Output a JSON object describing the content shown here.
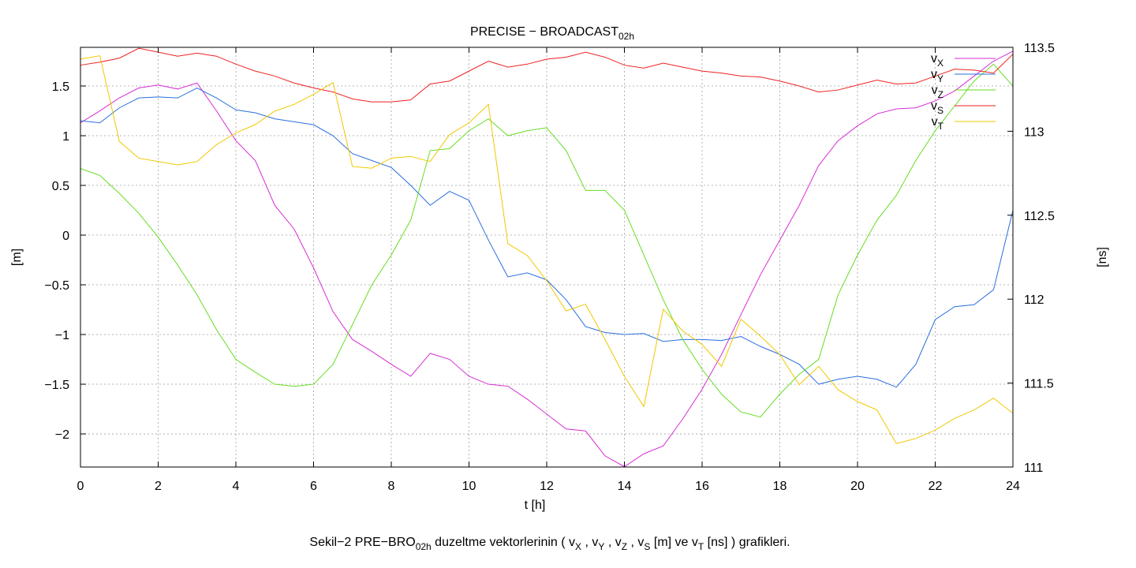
{
  "chart_data": {
    "type": "line",
    "title": [
      "PRECISE − BROADCAST",
      "02h"
    ],
    "x_label": "t [h]",
    "y_label": "[m]",
    "y2_label": "[ns]",
    "caption": [
      "Sekil−2 PRE−BRO",
      "02h",
      " duzeltme vektorlerinin ( v",
      "X",
      " , v",
      "Y",
      " , v",
      "Z",
      " , v",
      "S",
      " [m] ve v",
      "T",
      " [ns] ) grafikleri."
    ],
    "grid": true,
    "legend": "top-right",
    "xlim": [
      0,
      24
    ],
    "xticks": [
      0,
      2,
      4,
      6,
      8,
      10,
      12,
      14,
      16,
      18,
      20,
      22,
      24
    ],
    "ylim": [
      -2.333,
      1.889
    ],
    "yticks": [
      {
        "value": -2,
        "label": "−2"
      },
      {
        "value": -1.5,
        "label": "−1.5"
      },
      {
        "value": -1,
        "label": "−1"
      },
      {
        "value": -0.5,
        "label": "−0.5"
      },
      0,
      0.5,
      1,
      1.5
    ],
    "y2lim": [
      111,
      113.5
    ],
    "y2ticks": [
      111,
      111.5,
      112,
      112.5,
      113,
      113.5
    ],
    "x": [
      0,
      0.5,
      1,
      1.5,
      2,
      2.5,
      3,
      3.5,
      4,
      4.5,
      5,
      5.5,
      6,
      6.5,
      7,
      7.5,
      8,
      8.5,
      9,
      9.5,
      10,
      10.5,
      11,
      11.5,
      12,
      12.5,
      13,
      13.5,
      14,
      14.5,
      15,
      15.5,
      16,
      16.5,
      17,
      17.5,
      18,
      18.5,
      19,
      19.5,
      20,
      20.5,
      21,
      21.5,
      22,
      22.5,
      23,
      23.5,
      24
    ],
    "series": [
      {
        "name": [
          "v",
          "X"
        ],
        "color": "#d62ed6",
        "axis": "y",
        "values": [
          1.13,
          1.25,
          1.38,
          1.48,
          1.51,
          1.47,
          1.53,
          1.25,
          0.95,
          0.75,
          0.3,
          0.06,
          -0.33,
          -0.77,
          -1.05,
          -1.17,
          -1.3,
          -1.42,
          -1.19,
          -1.25,
          -1.42,
          -1.5,
          -1.52,
          -1.65,
          -1.8,
          -1.95,
          -1.97,
          -2.22,
          -2.33,
          -2.2,
          -2.12,
          -1.85,
          -1.55,
          -1.2,
          -0.8,
          -0.4,
          -0.05,
          0.3,
          0.7,
          0.95,
          1.1,
          1.22,
          1.27,
          1.28,
          1.35,
          1.45,
          1.6,
          1.75,
          1.85
        ]
      },
      {
        "name": [
          "v",
          "Y"
        ],
        "color": "#2a6ee0",
        "axis": "y",
        "values": [
          1.15,
          1.13,
          1.28,
          1.38,
          1.39,
          1.38,
          1.48,
          1.38,
          1.26,
          1.23,
          1.17,
          1.14,
          1.11,
          1.0,
          0.82,
          0.75,
          0.68,
          0.5,
          0.3,
          0.44,
          0.35,
          -0.05,
          -0.42,
          -0.38,
          -0.45,
          -0.65,
          -0.92,
          -0.98,
          -1.0,
          -0.99,
          -1.07,
          -1.05,
          -1.05,
          -1.06,
          -1.02,
          -1.12,
          -1.2,
          -1.3,
          -1.5,
          -1.45,
          -1.42,
          -1.45,
          -1.53,
          -1.3,
          -0.85,
          -0.72,
          -0.7,
          -0.55,
          0.25
        ]
      },
      {
        "name": [
          "v",
          "Z"
        ],
        "color": "#66dd22",
        "axis": "y",
        "values": [
          0.67,
          0.6,
          0.42,
          0.22,
          -0.02,
          -0.3,
          -0.6,
          -0.95,
          -1.25,
          -1.38,
          -1.5,
          -1.52,
          -1.5,
          -1.3,
          -0.9,
          -0.5,
          -0.2,
          0.15,
          0.85,
          0.87,
          1.05,
          1.17,
          1.0,
          1.05,
          1.08,
          0.85,
          0.45,
          0.45,
          0.25,
          -0.2,
          -0.65,
          -1.05,
          -1.35,
          -1.6,
          -1.78,
          -1.83,
          -1.6,
          -1.4,
          -1.25,
          -0.6,
          -0.2,
          0.15,
          0.4,
          0.75,
          1.05,
          1.3,
          1.55,
          1.72,
          1.5
        ]
      },
      {
        "name": [
          "v",
          "S"
        ],
        "color": "#ee2222",
        "axis": "y",
        "values": [
          1.71,
          1.74,
          1.78,
          1.88,
          1.84,
          1.8,
          1.83,
          1.8,
          1.72,
          1.65,
          1.6,
          1.53,
          1.48,
          1.44,
          1.37,
          1.34,
          1.34,
          1.36,
          1.52,
          1.55,
          1.65,
          1.75,
          1.69,
          1.72,
          1.77,
          1.79,
          1.84,
          1.79,
          1.71,
          1.68,
          1.73,
          1.69,
          1.65,
          1.63,
          1.6,
          1.59,
          1.55,
          1.5,
          1.44,
          1.46,
          1.51,
          1.56,
          1.52,
          1.53,
          1.6,
          1.67,
          1.66,
          1.63,
          1.82
        ]
      },
      {
        "name": [
          "v",
          "T"
        ],
        "color": "#f0c800",
        "axis": "y2",
        "values": [
          113.43,
          113.45,
          112.94,
          112.84,
          112.82,
          112.8,
          112.82,
          112.92,
          112.99,
          113.04,
          113.12,
          113.16,
          113.22,
          113.29,
          112.79,
          112.78,
          112.84,
          112.85,
          112.82,
          112.98,
          113.05,
          113.16,
          112.33,
          112.26,
          112.11,
          111.93,
          111.97,
          111.76,
          111.54,
          111.36,
          111.94,
          111.81,
          111.73,
          111.6,
          111.88,
          111.78,
          111.67,
          111.49,
          111.6,
          111.46,
          111.39,
          111.34,
          111.14,
          111.17,
          111.22,
          111.29,
          111.34,
          111.41,
          111.32
        ]
      }
    ]
  }
}
